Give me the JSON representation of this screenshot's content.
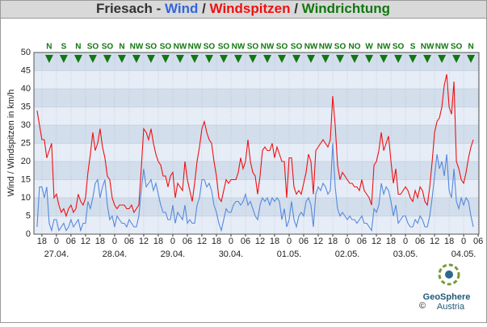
{
  "chart_data": {
    "type": "line",
    "title_parts": [
      {
        "text": "Friesach - ",
        "color": "#333333"
      },
      {
        "text": "Wind",
        "color": "#3366dd"
      },
      {
        "text": " / ",
        "color": "#333333"
      },
      {
        "text": "Windspitzen",
        "color": "#ee1111"
      },
      {
        "text": " / ",
        "color": "#333333"
      },
      {
        "text": "Windrichtung",
        "color": "#117711"
      }
    ],
    "y_label": "Wind / Windspitzen in km/h",
    "xlim": [
      -9.3,
      174.3
    ],
    "ylim": [
      0,
      50
    ],
    "yticks": [
      0,
      5,
      10,
      15,
      20,
      25,
      30,
      35,
      40,
      45,
      50
    ],
    "xticks": [
      {
        "value": -6,
        "label": "18"
      },
      0,
      {
        "value": 6,
        "label": "06"
      },
      12,
      18,
      {
        "value": 24,
        "label": "0"
      },
      {
        "value": 30,
        "label": "06"
      },
      {
        "value": 36,
        "label": "12"
      },
      {
        "value": 42,
        "label": "18"
      },
      {
        "value": 48,
        "label": "0"
      },
      {
        "value": 54,
        "label": "06"
      },
      {
        "value": 60,
        "label": "12"
      },
      {
        "value": 66,
        "label": "18"
      },
      {
        "value": 72,
        "label": "0"
      },
      {
        "value": 78,
        "label": "06"
      },
      {
        "value": 84,
        "label": "12"
      },
      {
        "value": 90,
        "label": "18"
      },
      {
        "value": 96,
        "label": "0"
      },
      {
        "value": 102,
        "label": "06"
      },
      {
        "value": 108,
        "label": "12"
      },
      {
        "value": 114,
        "label": "18"
      },
      {
        "value": 120,
        "label": "0"
      },
      {
        "value": 126,
        "label": "06"
      },
      {
        "value": 132,
        "label": "12"
      },
      {
        "value": 138,
        "label": "18"
      },
      {
        "value": 144,
        "label": "0"
      },
      {
        "value": 150,
        "label": "06"
      },
      {
        "value": 156,
        "label": "12"
      },
      {
        "value": 162,
        "label": "18"
      },
      {
        "value": 168,
        "label": "0"
      },
      {
        "value": 174,
        "label": "06"
      }
    ],
    "date_ticks": [
      {
        "value": 0,
        "label": "27.04."
      },
      {
        "value": 24,
        "label": "28.04."
      },
      {
        "value": 48,
        "label": "29.04."
      },
      {
        "value": 72,
        "label": "30.04."
      },
      {
        "value": 96,
        "label": "01.05."
      },
      {
        "value": 120,
        "label": "02.05."
      },
      {
        "value": 144,
        "label": "03.05."
      },
      {
        "value": 168,
        "label": "04.05."
      }
    ],
    "grid": true,
    "band_colors": [
      "#e6edf7",
      "#d3deec"
    ],
    "x": [
      -8,
      -7,
      -6,
      -5,
      -4,
      -3,
      -2,
      -1,
      0,
      1,
      2,
      3,
      4,
      5,
      6,
      7,
      8,
      9,
      10,
      11,
      12,
      13,
      14,
      15,
      16,
      17,
      18,
      19,
      20,
      21,
      22,
      23,
      24,
      25,
      26,
      27,
      28,
      29,
      30,
      31,
      32,
      33,
      34,
      35,
      36,
      37,
      38,
      39,
      40,
      41,
      42,
      43,
      44,
      45,
      46,
      47,
      48,
      49,
      50,
      51,
      52,
      53,
      54,
      55,
      56,
      57,
      58,
      59,
      60,
      61,
      62,
      63,
      64,
      65,
      66,
      67,
      68,
      69,
      70,
      71,
      72,
      73,
      74,
      75,
      76,
      77,
      78,
      79,
      80,
      81,
      82,
      83,
      84,
      85,
      86,
      87,
      88,
      89,
      90,
      91,
      92,
      93,
      94,
      95,
      96,
      97,
      98,
      99,
      100,
      101,
      102,
      103,
      104,
      105,
      106,
      107,
      108,
      109,
      110,
      111,
      112,
      113,
      114,
      115,
      116,
      117,
      118,
      119,
      120,
      121,
      122,
      123,
      124,
      125,
      126,
      127,
      128,
      129,
      130,
      131,
      132,
      133,
      134,
      135,
      136,
      137,
      138,
      139,
      140,
      141,
      142,
      143,
      144,
      145,
      146,
      147,
      148,
      149,
      150,
      151,
      152,
      153,
      154,
      155,
      156,
      157,
      158,
      159,
      160,
      161,
      162,
      163,
      164,
      165,
      166,
      167,
      168,
      169,
      170,
      171,
      172
    ],
    "series": [
      {
        "color": "#ee1111",
        "values": [
          34,
          30,
          26,
          26,
          21,
          23,
          25,
          10,
          11,
          8,
          6,
          7,
          5,
          7,
          8,
          6,
          7,
          11,
          9,
          8,
          10,
          17,
          22,
          28,
          23,
          25,
          29,
          24,
          21,
          16,
          15,
          10,
          8,
          7,
          8,
          8,
          8,
          7,
          7,
          8,
          6,
          7,
          8,
          18,
          29,
          28,
          26,
          29,
          25,
          22,
          20,
          19,
          16,
          16,
          13,
          16,
          17,
          10,
          14,
          13,
          12,
          20,
          15,
          12,
          9,
          14,
          20,
          24,
          29,
          31,
          28,
          26,
          25,
          20,
          16,
          10,
          9,
          12,
          15,
          14,
          15,
          15,
          15,
          17,
          21,
          18,
          20,
          26,
          20,
          17,
          16,
          11,
          16,
          23,
          24,
          23,
          23,
          25,
          21,
          24,
          22,
          20,
          20,
          10,
          21,
          21,
          13,
          11,
          12,
          11,
          14,
          17,
          22,
          20,
          11,
          23,
          24,
          25,
          26,
          25,
          24,
          26,
          38,
          30,
          19,
          15,
          17,
          16,
          15,
          14,
          14,
          13,
          13,
          12,
          15,
          12,
          11,
          10,
          8,
          19,
          20,
          23,
          28,
          23,
          25,
          27,
          20,
          14,
          18,
          11,
          11,
          12,
          13,
          12,
          10,
          9,
          12,
          10,
          13,
          12,
          9,
          8,
          13,
          20,
          28,
          31,
          32,
          35,
          41,
          44,
          35,
          33,
          42,
          20,
          18,
          15,
          14,
          17,
          21,
          24,
          26
        ]
      },
      {
        "color": "#5588dd",
        "values": [
          2,
          13,
          13,
          10,
          13,
          3,
          1,
          4,
          4,
          1,
          2,
          3,
          1,
          2,
          4,
          2,
          3,
          4,
          1,
          3,
          3,
          9,
          7,
          10,
          14,
          15,
          10,
          13,
          15,
          8,
          4,
          5,
          2,
          5,
          4,
          3,
          3,
          2,
          4,
          3,
          2,
          2,
          5,
          12,
          18,
          13,
          14,
          15,
          12,
          14,
          11,
          8,
          6,
          6,
          4,
          4,
          8,
          3,
          6,
          5,
          4,
          8,
          3,
          4,
          3,
          3,
          8,
          10,
          15,
          15,
          13,
          14,
          12,
          8,
          6,
          3,
          1,
          4,
          7,
          6,
          6,
          8,
          9,
          9,
          8,
          9,
          11,
          8,
          9,
          7,
          5,
          4,
          8,
          10,
          9,
          10,
          8,
          10,
          9,
          10,
          9,
          4,
          7,
          2,
          4,
          9,
          4,
          2,
          5,
          6,
          5,
          9,
          10,
          8,
          2,
          11,
          13,
          12,
          14,
          13,
          11,
          12,
          25,
          13,
          7,
          5,
          6,
          5,
          4,
          5,
          4,
          4,
          3,
          4,
          5,
          3,
          3,
          2,
          1,
          7,
          6,
          8,
          14,
          11,
          13,
          12,
          9,
          5,
          8,
          3,
          4,
          5,
          5,
          3,
          2,
          2,
          4,
          3,
          5,
          4,
          2,
          2,
          5,
          10,
          16,
          22,
          18,
          20,
          16,
          22,
          12,
          10,
          18,
          9,
          7,
          10,
          8,
          10,
          9,
          5,
          2
        ]
      }
    ],
    "wind_direction": {
      "color": "#117711",
      "x": [
        -3,
        3,
        9,
        15,
        21,
        27,
        33,
        39,
        45,
        51,
        57,
        63,
        69,
        75,
        81,
        87,
        93,
        99,
        105,
        111,
        117,
        123,
        129,
        135,
        141,
        147,
        153,
        159,
        165,
        171
      ],
      "labels": [
        "N",
        "S",
        "N",
        "SO",
        "SO",
        "N",
        "NW",
        "SO",
        "SO",
        "NW",
        "NW",
        "SO",
        "SO",
        "NW",
        "SO",
        "NW",
        "SO",
        "SO",
        "NW",
        "NW",
        "SO",
        "NO",
        "W",
        "NW",
        "SO",
        "S",
        "NW",
        "NW",
        "SO",
        "N"
      ]
    },
    "logo": {
      "name": "GeoSphere",
      "sub": "Austria",
      "copyright": "©"
    }
  }
}
